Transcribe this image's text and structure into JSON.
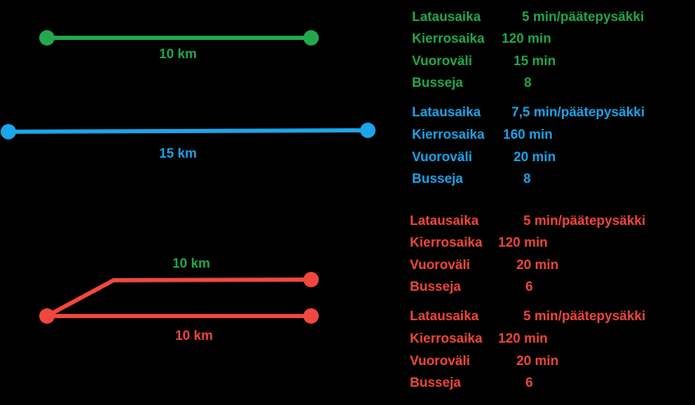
{
  "routes": [
    {
      "length": "10 km"
    },
    {
      "length": "15 km"
    },
    {
      "upper_length": "10 km",
      "lower_length": "10 km"
    }
  ],
  "blocks": [
    {
      "rows": [
        {
          "label": "Latausaika",
          "value": "5 min/päätepysäkki"
        },
        {
          "label": "Kierrosaika",
          "value": "120 min"
        },
        {
          "label": "Vuoroväli",
          "value": "15 min"
        },
        {
          "label": "Busseja",
          "value": "8"
        }
      ]
    },
    {
      "rows": [
        {
          "label": "Latausaika",
          "value": "7,5 min/päätepysäkki"
        },
        {
          "label": "Kierrosaika",
          "value": "160 min"
        },
        {
          "label": "Vuoroväli",
          "value": "20 min"
        },
        {
          "label": "Busseja",
          "value": "8"
        }
      ]
    },
    {
      "rows": [
        {
          "label": "Latausaika",
          "value": "5 min/päätepysäkki"
        },
        {
          "label": "Kierrosaika",
          "value": "120 min"
        },
        {
          "label": "Vuoroväli",
          "value": "20 min"
        },
        {
          "label": "Busseja",
          "value": "6"
        }
      ]
    },
    {
      "rows": [
        {
          "label": "Latausaika",
          "value": "5 min/päätepysäkki"
        },
        {
          "label": "Kierrosaika",
          "value": "120 min"
        },
        {
          "label": "Vuoroväli",
          "value": "20 min"
        },
        {
          "label": "Busseja",
          "value": "6"
        }
      ]
    }
  ]
}
